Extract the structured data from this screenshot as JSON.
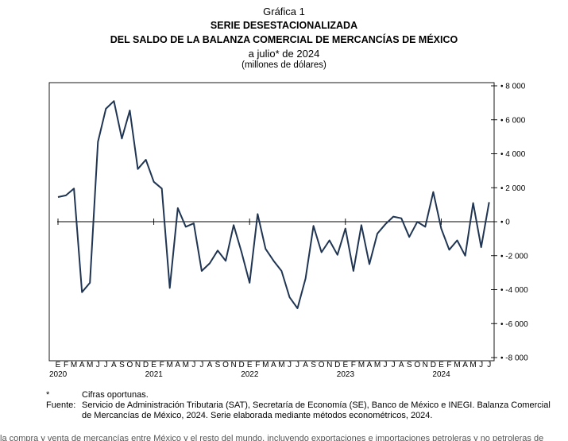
{
  "header": {
    "label": "Gráfica 1",
    "title_line1": "SERIE DESESTACIONALIZADA",
    "title_line2": "DEL SALDO DE LA BALANZA COMERCIAL DE MERCANCÍAS DE MÉXICO",
    "subtitle": "a julio* de 2024",
    "units": "(millones de dólares)"
  },
  "footnotes": {
    "asterisk_key": "*",
    "asterisk_text": "Cifras oportunas.",
    "source_key": "Fuente:",
    "source_text": "Servicio de Administración Tributaria (SAT), Secretaría de Economía (SE), Banco de México e INEGI. Balanza Comercial de Mercancías de México, 2024. Serie elaborada mediante métodos econométricos, 2024."
  },
  "chart_data": {
    "type": "line",
    "title": "SERIE DESESTACIONALIZADA DEL SALDO DE LA BALANZA COMERCIAL DE MERCANCÍAS DE MÉXICO",
    "subtitle": "a julio* de 2024",
    "ylabel": "(millones de dólares)",
    "ylim": [
      -8000,
      8000
    ],
    "yticks": [
      -8000,
      -6000,
      -4000,
      -2000,
      0,
      2000,
      4000,
      6000,
      8000
    ],
    "ytick_labels": [
      "-8 000",
      "-6 000",
      "-4 000",
      "-2 000",
      "0",
      "2 000",
      "4 000",
      "6 000",
      "8 000"
    ],
    "month_labels": [
      "E",
      "F",
      "M",
      "A",
      "M",
      "J",
      "J",
      "A",
      "S",
      "O",
      "N",
      "D"
    ],
    "years": [
      "2020",
      "2021",
      "2022",
      "2023",
      "2024"
    ],
    "grid": false,
    "line_color": "#1f3553",
    "series": [
      {
        "x": [
          "2020-01",
          "2020-02",
          "2020-03",
          "2020-04",
          "2020-05",
          "2020-06",
          "2020-07",
          "2020-08",
          "2020-09",
          "2020-10",
          "2020-11",
          "2020-12",
          "2021-01",
          "2021-02",
          "2021-03",
          "2021-04",
          "2021-05",
          "2021-06",
          "2021-07",
          "2021-08",
          "2021-09",
          "2021-10",
          "2021-11",
          "2021-12",
          "2022-01",
          "2022-02",
          "2022-03",
          "2022-04",
          "2022-05",
          "2022-06",
          "2022-07",
          "2022-08",
          "2022-09",
          "2022-10",
          "2022-11",
          "2022-12",
          "2023-01",
          "2023-02",
          "2023-03",
          "2023-04",
          "2023-05",
          "2023-06",
          "2023-07",
          "2023-08",
          "2023-09",
          "2023-10",
          "2023-11",
          "2023-12",
          "2024-01",
          "2024-02",
          "2024-03",
          "2024-04",
          "2024-05",
          "2024-06",
          "2024-07"
        ],
        "values": [
          1450,
          1550,
          1950,
          -4150,
          -3600,
          4700,
          6650,
          7100,
          4900,
          6550,
          3100,
          3650,
          2350,
          1950,
          -3900,
          800,
          -300,
          -100,
          -2900,
          -2450,
          -1700,
          -2300,
          -200,
          -1800,
          -3600,
          450,
          -1600,
          -2300,
          -2900,
          -4450,
          -5100,
          -3350,
          -250,
          -1800,
          -1100,
          -1950,
          -400,
          -2900,
          -200,
          -2500,
          -700,
          -150,
          300,
          200,
          -900,
          -10,
          -300,
          1750,
          -400,
          -1650,
          -1100,
          -2000,
          1100,
          -1500,
          1150
        ]
      }
    ]
  },
  "cut_text": "la compra y venta de mercancías entre México y el resto del mundo, incluyendo exportaciones e importaciones petroleras y no petroleras de"
}
